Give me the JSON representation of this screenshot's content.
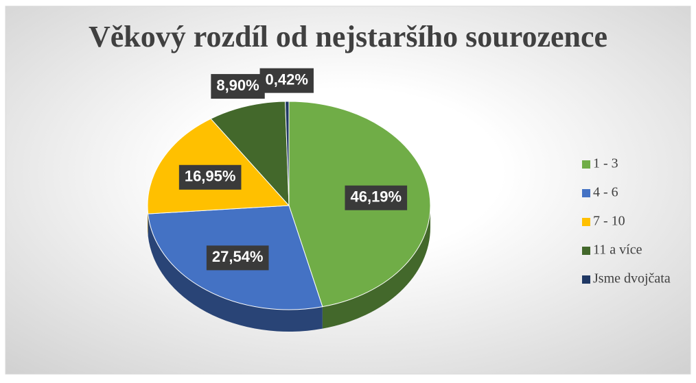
{
  "chart_data": {
    "type": "pie",
    "title": "Věkový rozdíl od nejstaršího sourozence",
    "categories": [
      "1 - 3",
      "4 - 6",
      "7 - 10",
      "11 a více",
      "Jsme dvojčata"
    ],
    "values": [
      46.19,
      27.54,
      16.95,
      8.9,
      0.42
    ],
    "value_labels": [
      "46,19%",
      "27,54%",
      "16,95%",
      "8,90%",
      "0,42%"
    ],
    "colors": [
      "#70ad47",
      "#4472c4",
      "#ffc000",
      "#43682b",
      "#203864"
    ],
    "legend": "right"
  }
}
